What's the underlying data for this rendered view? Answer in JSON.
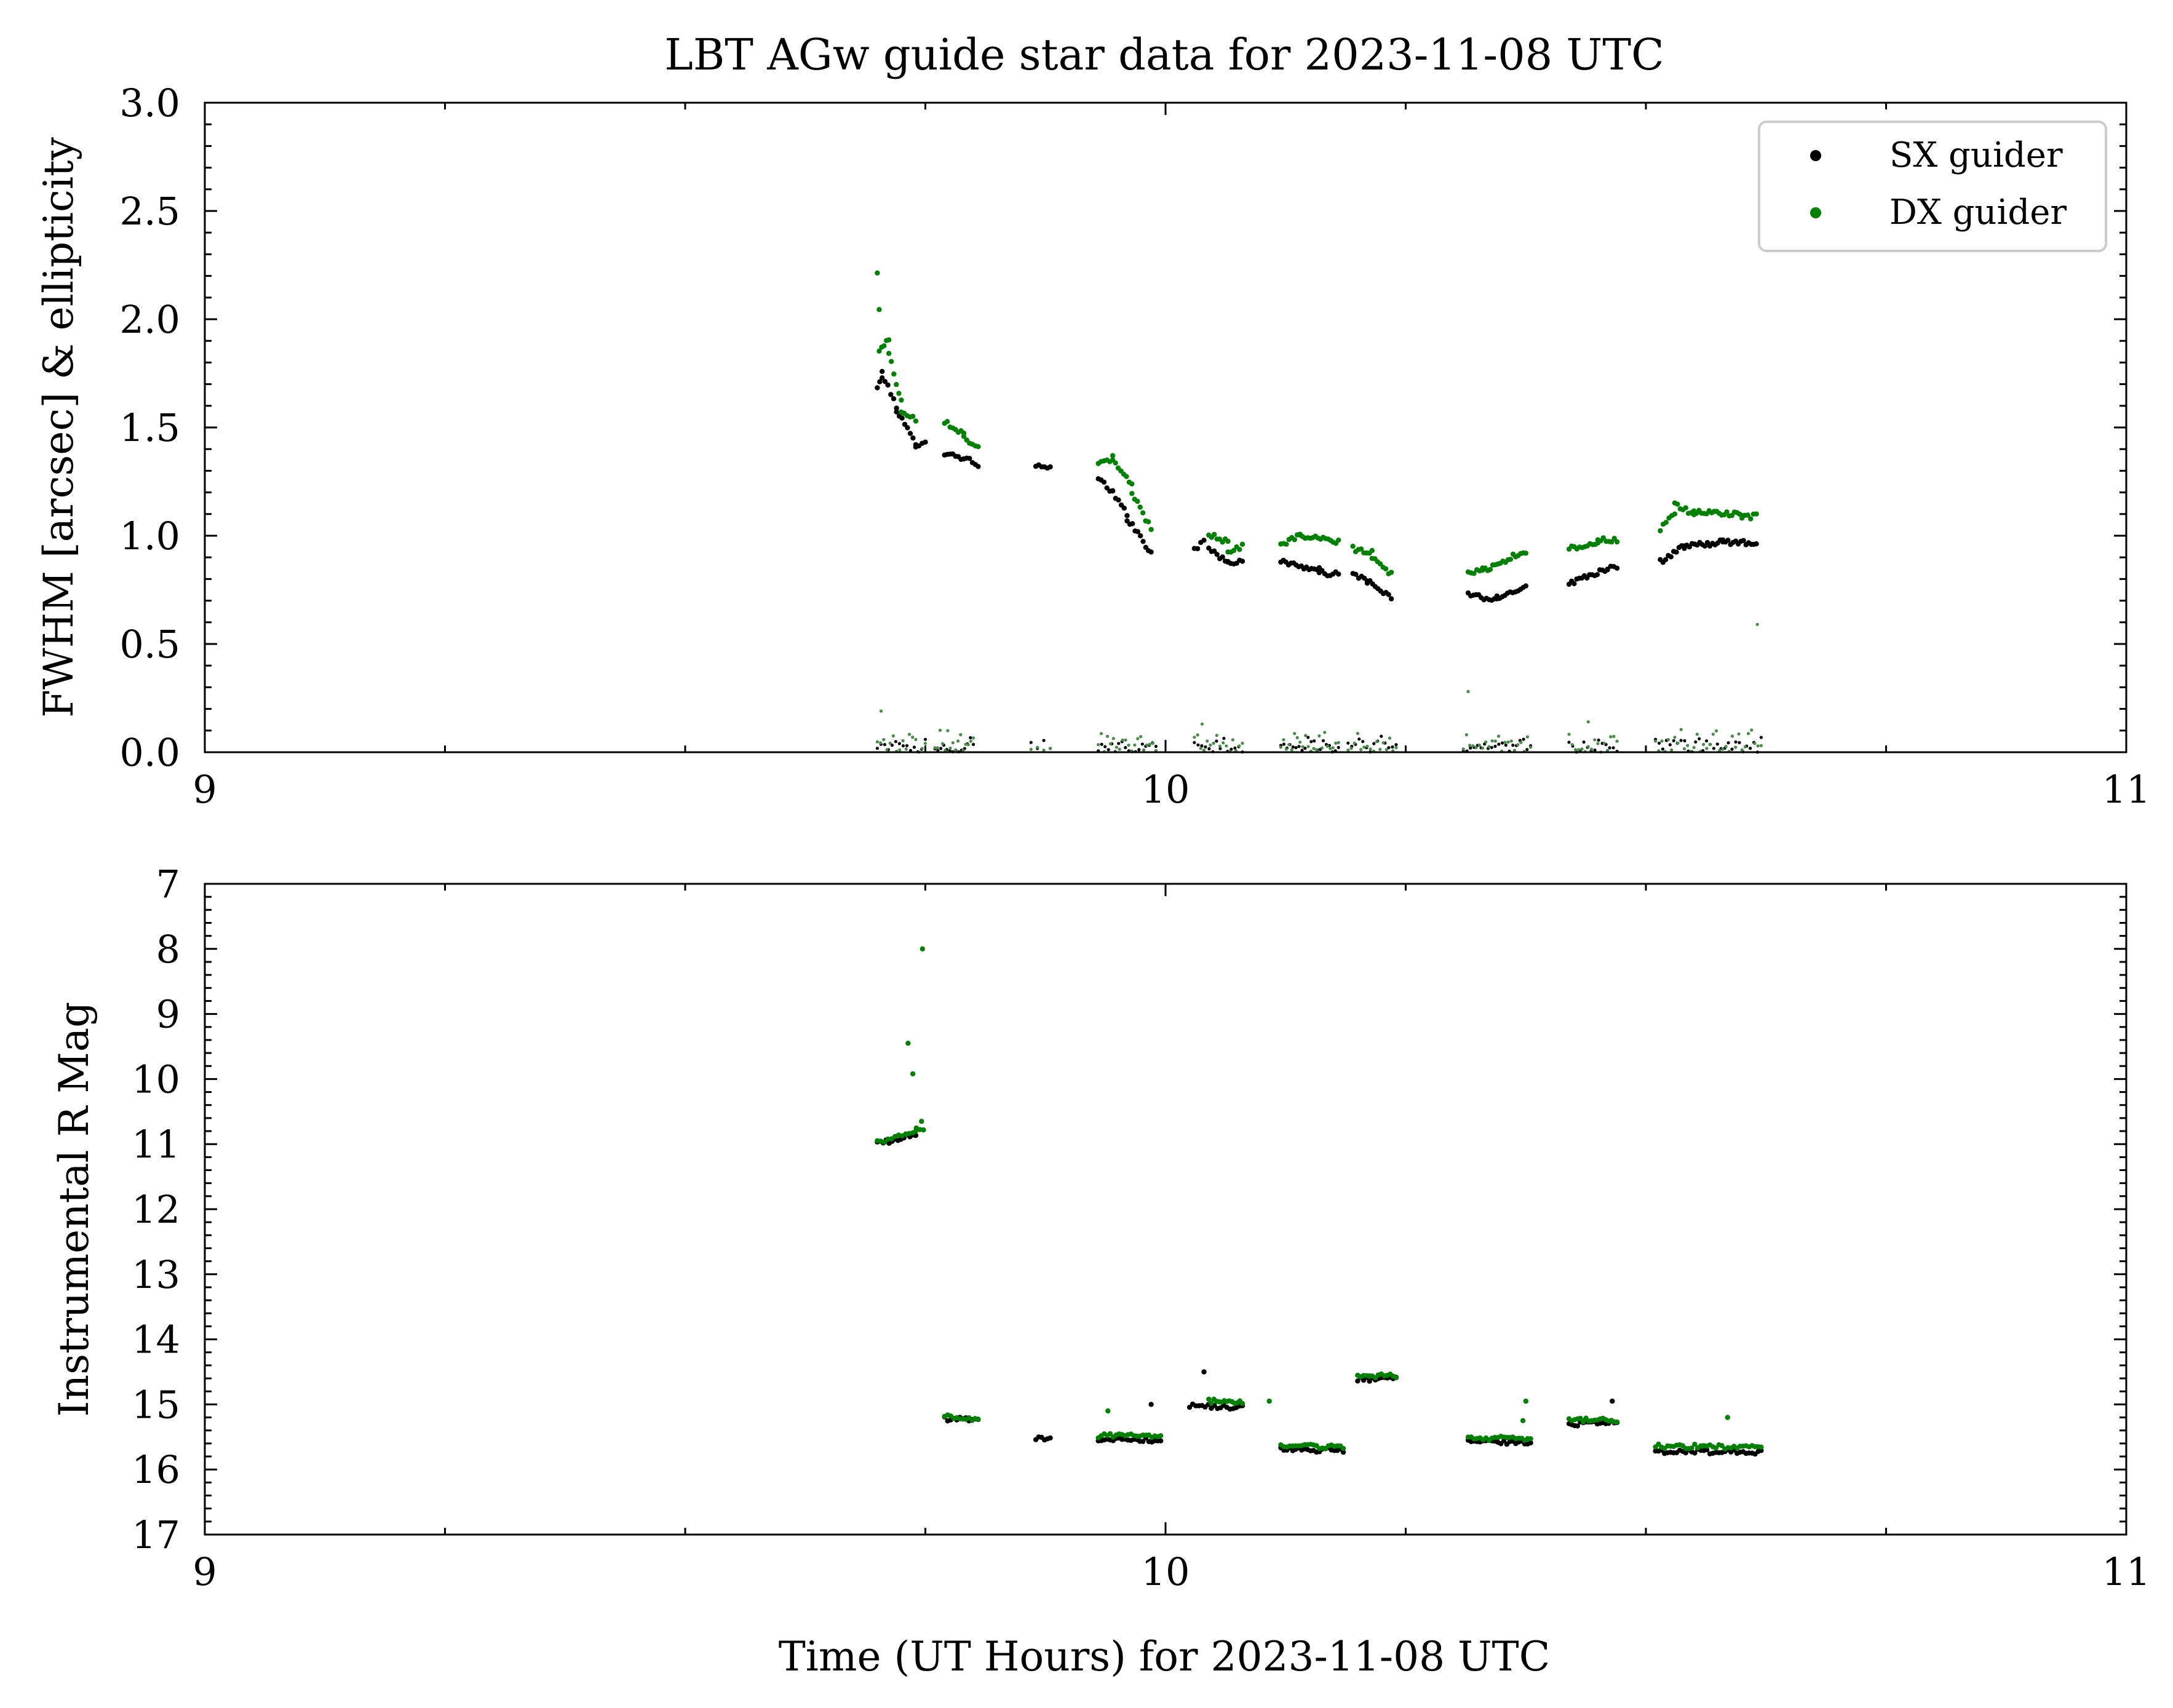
{
  "colors": {
    "sx": "#000000",
    "dx": "#008000",
    "dx_ellipticity": "#4a8a4a",
    "legend_border": "#cccccc"
  },
  "chart_data": [
    {
      "type": "scatter",
      "title": "LBT AGw guide star data for 2023-11-08 UTC",
      "xlabel": "",
      "ylabel": "FWHM [arcsec] & ellipticity",
      "xlim": [
        9,
        11
      ],
      "ylim": [
        0.0,
        3.0
      ],
      "x_ticks": [
        9,
        10,
        11
      ],
      "x_tick_labels": [
        "9",
        "10",
        "11"
      ],
      "y_ticks": [
        0.0,
        0.5,
        1.0,
        1.5,
        2.0,
        2.5,
        3.0
      ],
      "y_tick_labels": [
        "0.0",
        "0.5",
        "1.0",
        "1.5",
        "2.0",
        "2.5",
        "3.0"
      ],
      "grid": false,
      "legend": {
        "placement": "top-right",
        "entries": [
          {
            "label": "SX guider",
            "color": "#000000"
          },
          {
            "label": "DX guider",
            "color": "#008000"
          }
        ]
      },
      "series": [
        {
          "name": "SX guider",
          "color": "#000000",
          "segments": [
            {
              "t0": 9.7,
              "t1": 9.705,
              "y0": 1.68,
              "y1": 1.75,
              "n": 3
            },
            {
              "t0": 9.705,
              "t1": 9.72,
              "y0": 1.74,
              "y1": 1.6,
              "n": 6
            },
            {
              "t0": 9.72,
              "t1": 9.74,
              "y0": 1.58,
              "y1": 1.42,
              "n": 8
            },
            {
              "t0": 9.74,
              "t1": 9.75,
              "y0": 1.42,
              "y1": 1.44,
              "n": 4
            },
            {
              "t0": 9.77,
              "t1": 9.79,
              "y0": 1.38,
              "y1": 1.36,
              "n": 8
            },
            {
              "t0": 9.79,
              "t1": 9.805,
              "y0": 1.36,
              "y1": 1.33,
              "n": 6
            },
            {
              "t0": 9.865,
              "t1": 9.88,
              "y0": 1.32,
              "y1": 1.31,
              "n": 6
            },
            {
              "t0": 9.93,
              "t1": 9.945,
              "y0": 1.26,
              "y1": 1.2,
              "n": 6
            },
            {
              "t0": 9.945,
              "t1": 9.96,
              "y0": 1.2,
              "y1": 1.1,
              "n": 6
            },
            {
              "t0": 9.96,
              "t1": 9.985,
              "y0": 1.08,
              "y1": 0.92,
              "n": 10
            },
            {
              "t0": 10.03,
              "t1": 10.04,
              "y0": 0.94,
              "y1": 0.97,
              "n": 4
            },
            {
              "t0": 10.045,
              "t1": 10.065,
              "y0": 0.94,
              "y1": 0.88,
              "n": 8
            },
            {
              "t0": 10.065,
              "t1": 10.08,
              "y0": 0.87,
              "y1": 0.89,
              "n": 6
            },
            {
              "t0": 10.12,
              "t1": 10.16,
              "y0": 0.88,
              "y1": 0.84,
              "n": 16
            },
            {
              "t0": 10.16,
              "t1": 10.18,
              "y0": 0.83,
              "y1": 0.82,
              "n": 8
            },
            {
              "t0": 10.195,
              "t1": 10.21,
              "y0": 0.82,
              "y1": 0.8,
              "n": 6
            },
            {
              "t0": 10.21,
              "t1": 10.235,
              "y0": 0.79,
              "y1": 0.71,
              "n": 10
            },
            {
              "t0": 10.315,
              "t1": 10.345,
              "y0": 0.73,
              "y1": 0.7,
              "n": 12
            },
            {
              "t0": 10.345,
              "t1": 10.375,
              "y0": 0.71,
              "y1": 0.77,
              "n": 12
            },
            {
              "t0": 10.42,
              "t1": 10.46,
              "y0": 0.78,
              "y1": 0.85,
              "n": 16
            },
            {
              "t0": 10.46,
              "t1": 10.47,
              "y0": 0.85,
              "y1": 0.86,
              "n": 4
            },
            {
              "t0": 10.515,
              "t1": 10.54,
              "y0": 0.88,
              "y1": 0.95,
              "n": 10
            },
            {
              "t0": 10.54,
              "t1": 10.58,
              "y0": 0.95,
              "y1": 0.97,
              "n": 16
            },
            {
              "t0": 10.58,
              "t1": 10.615,
              "y0": 0.97,
              "y1": 0.97,
              "n": 14
            }
          ]
        },
        {
          "name": "DX guider",
          "color": "#008000",
          "segments": [
            {
              "t0": 9.7,
              "t1": 9.702,
              "y0": 2.21,
              "y1": 2.04,
              "n": 2
            },
            {
              "t0": 9.702,
              "t1": 9.712,
              "y0": 1.86,
              "y1": 1.91,
              "n": 5
            },
            {
              "t0": 9.712,
              "t1": 9.725,
              "y0": 1.84,
              "y1": 1.62,
              "n": 6
            },
            {
              "t0": 9.725,
              "t1": 9.74,
              "y0": 1.58,
              "y1": 1.54,
              "n": 6
            },
            {
              "t0": 9.77,
              "t1": 9.79,
              "y0": 1.53,
              "y1": 1.47,
              "n": 8
            },
            {
              "t0": 9.79,
              "t1": 9.805,
              "y0": 1.46,
              "y1": 1.4,
              "n": 6
            },
            {
              "t0": 9.93,
              "t1": 9.945,
              "y0": 1.33,
              "y1": 1.36,
              "n": 6
            },
            {
              "t0": 9.945,
              "t1": 9.965,
              "y0": 1.34,
              "y1": 1.24,
              "n": 8
            },
            {
              "t0": 9.965,
              "t1": 9.985,
              "y0": 1.2,
              "y1": 1.03,
              "n": 8
            },
            {
              "t0": 10.045,
              "t1": 10.065,
              "y0": 1.01,
              "y1": 0.97,
              "n": 8
            },
            {
              "t0": 10.065,
              "t1": 10.08,
              "y0": 0.93,
              "y1": 0.95,
              "n": 6
            },
            {
              "t0": 10.12,
              "t1": 10.14,
              "y0": 0.96,
              "y1": 1.0,
              "n": 8
            },
            {
              "t0": 10.14,
              "t1": 10.18,
              "y0": 1.0,
              "y1": 0.97,
              "n": 16
            },
            {
              "t0": 10.195,
              "t1": 10.215,
              "y0": 0.94,
              "y1": 0.92,
              "n": 8
            },
            {
              "t0": 10.215,
              "t1": 10.235,
              "y0": 0.9,
              "y1": 0.82,
              "n": 8
            },
            {
              "t0": 10.315,
              "t1": 10.33,
              "y0": 0.84,
              "y1": 0.83,
              "n": 6
            },
            {
              "t0": 10.33,
              "t1": 10.375,
              "y0": 0.84,
              "y1": 0.93,
              "n": 18
            },
            {
              "t0": 10.42,
              "t1": 10.45,
              "y0": 0.94,
              "y1": 0.97,
              "n": 12
            },
            {
              "t0": 10.45,
              "t1": 10.47,
              "y0": 0.98,
              "y1": 0.98,
              "n": 8
            },
            {
              "t0": 10.515,
              "t1": 10.53,
              "y0": 1.03,
              "y1": 1.1,
              "n": 6
            },
            {
              "t0": 10.53,
              "t1": 10.55,
              "y0": 1.14,
              "y1": 1.1,
              "n": 8
            },
            {
              "t0": 10.55,
              "t1": 10.6,
              "y0": 1.11,
              "y1": 1.1,
              "n": 20
            },
            {
              "t0": 10.6,
              "t1": 10.615,
              "y0": 1.08,
              "y1": 1.09,
              "n": 6
            }
          ]
        },
        {
          "name": "SX ellipticity",
          "color": "#000000",
          "scatter_band": {
            "ymin": 0.0,
            "ymax": 0.08
          },
          "segments": [
            {
              "t0": 9.7,
              "t1": 9.75,
              "n": 14
            },
            {
              "t0": 9.76,
              "t1": 9.8,
              "n": 14
            },
            {
              "t0": 9.86,
              "t1": 9.88,
              "n": 4
            },
            {
              "t0": 9.93,
              "t1": 9.99,
              "n": 18
            },
            {
              "t0": 10.03,
              "t1": 10.08,
              "n": 14
            },
            {
              "t0": 10.12,
              "t1": 10.18,
              "n": 20
            },
            {
              "t0": 10.19,
              "t1": 10.24,
              "n": 14
            },
            {
              "t0": 10.31,
              "t1": 10.38,
              "n": 20
            },
            {
              "t0": 10.42,
              "t1": 10.47,
              "n": 14
            },
            {
              "t0": 10.51,
              "t1": 10.62,
              "n": 30
            }
          ]
        },
        {
          "name": "DX ellipticity",
          "color": "#4a8a4a",
          "scatter_band": {
            "ymin": 0.0,
            "ymax": 0.12
          },
          "outliers": [
            [
              9.704,
              0.19
            ],
            [
              10.315,
              0.28
            ],
            [
              10.616,
              0.59
            ],
            [
              10.038,
              0.13
            ],
            [
              10.44,
              0.14
            ]
          ],
          "segments": [
            {
              "t0": 9.7,
              "t1": 9.75,
              "n": 16
            },
            {
              "t0": 9.76,
              "t1": 9.8,
              "n": 16
            },
            {
              "t0": 9.86,
              "t1": 9.88,
              "n": 4
            },
            {
              "t0": 9.93,
              "t1": 9.99,
              "n": 20
            },
            {
              "t0": 10.03,
              "t1": 10.08,
              "n": 16
            },
            {
              "t0": 10.12,
              "t1": 10.18,
              "n": 22
            },
            {
              "t0": 10.19,
              "t1": 10.24,
              "n": 16
            },
            {
              "t0": 10.31,
              "t1": 10.38,
              "n": 22
            },
            {
              "t0": 10.42,
              "t1": 10.47,
              "n": 16
            },
            {
              "t0": 10.51,
              "t1": 10.62,
              "n": 34
            }
          ]
        }
      ]
    },
    {
      "type": "scatter",
      "title": "",
      "xlabel": "Time (UT Hours) for 2023-11-08 UTC",
      "ylabel": "Instrumental R Mag",
      "xlim": [
        9,
        11
      ],
      "ylim": [
        17,
        7
      ],
      "y_inverted": true,
      "x_ticks": [
        9,
        10,
        11
      ],
      "x_tick_labels": [
        "9",
        "10",
        "11"
      ],
      "y_ticks": [
        7,
        8,
        9,
        10,
        11,
        12,
        13,
        14,
        15,
        16,
        17
      ],
      "y_tick_labels": [
        "7",
        "8",
        "9",
        "10",
        "11",
        "12",
        "13",
        "14",
        "15",
        "16",
        "17"
      ],
      "grid": false,
      "series": [
        {
          "name": "SX guider",
          "color": "#000000",
          "outliers": [
            [
              9.985,
              15.0
            ],
            [
              10.04,
              14.5
            ],
            [
              10.465,
              14.95
            ]
          ],
          "segments": [
            {
              "t0": 9.7,
              "t1": 9.74,
              "y0": 11.0,
              "y1": 10.85,
              "n": 14
            },
            {
              "t0": 9.77,
              "t1": 9.805,
              "y0": 15.22,
              "y1": 15.25,
              "n": 12
            },
            {
              "t0": 9.865,
              "t1": 9.88,
              "y0": 15.52,
              "y1": 15.55,
              "n": 6
            },
            {
              "t0": 9.93,
              "t1": 9.995,
              "y0": 15.55,
              "y1": 15.55,
              "n": 22
            },
            {
              "t0": 10.025,
              "t1": 10.08,
              "y0": 15.02,
              "y1": 15.05,
              "n": 18
            },
            {
              "t0": 10.12,
              "t1": 10.185,
              "y0": 15.7,
              "y1": 15.7,
              "n": 22
            },
            {
              "t0": 10.2,
              "t1": 10.24,
              "y0": 14.62,
              "y1": 14.6,
              "n": 14
            },
            {
              "t0": 10.315,
              "t1": 10.38,
              "y0": 15.58,
              "y1": 15.58,
              "n": 22
            },
            {
              "t0": 10.42,
              "t1": 10.47,
              "y0": 15.3,
              "y1": 15.28,
              "n": 18
            },
            {
              "t0": 10.51,
              "t1": 10.62,
              "y0": 15.72,
              "y1": 15.73,
              "n": 36
            }
          ]
        },
        {
          "name": "DX guider",
          "color": "#008000",
          "outliers": [
            [
              9.732,
              9.45
            ],
            [
              9.737,
              9.92
            ],
            [
              9.747,
              8.0
            ],
            [
              9.73,
              10.85
            ],
            [
              9.74,
              10.8
            ],
            [
              9.746,
              10.65
            ],
            [
              9.94,
              15.1
            ],
            [
              10.108,
              14.95
            ],
            [
              10.372,
              15.25
            ],
            [
              10.375,
              14.95
            ],
            [
              10.435,
              15.25
            ],
            [
              10.585,
              15.2
            ]
          ],
          "segments": [
            {
              "t0": 9.7,
              "t1": 9.748,
              "y0": 10.98,
              "y1": 10.75,
              "n": 14
            },
            {
              "t0": 9.77,
              "t1": 9.805,
              "y0": 15.18,
              "y1": 15.22,
              "n": 12
            },
            {
              "t0": 9.93,
              "t1": 9.995,
              "y0": 15.48,
              "y1": 15.5,
              "n": 22
            },
            {
              "t0": 10.045,
              "t1": 10.08,
              "y0": 14.95,
              "y1": 14.98,
              "n": 14
            },
            {
              "t0": 10.12,
              "t1": 10.185,
              "y0": 15.64,
              "y1": 15.65,
              "n": 22
            },
            {
              "t0": 10.2,
              "t1": 10.24,
              "y0": 14.56,
              "y1": 14.57,
              "n": 14
            },
            {
              "t0": 10.315,
              "t1": 10.38,
              "y0": 15.52,
              "y1": 15.52,
              "n": 22
            },
            {
              "t0": 10.42,
              "t1": 10.47,
              "y0": 15.24,
              "y1": 15.24,
              "n": 18
            },
            {
              "t0": 10.51,
              "t1": 10.62,
              "y0": 15.64,
              "y1": 15.66,
              "n": 36
            }
          ]
        }
      ]
    }
  ]
}
